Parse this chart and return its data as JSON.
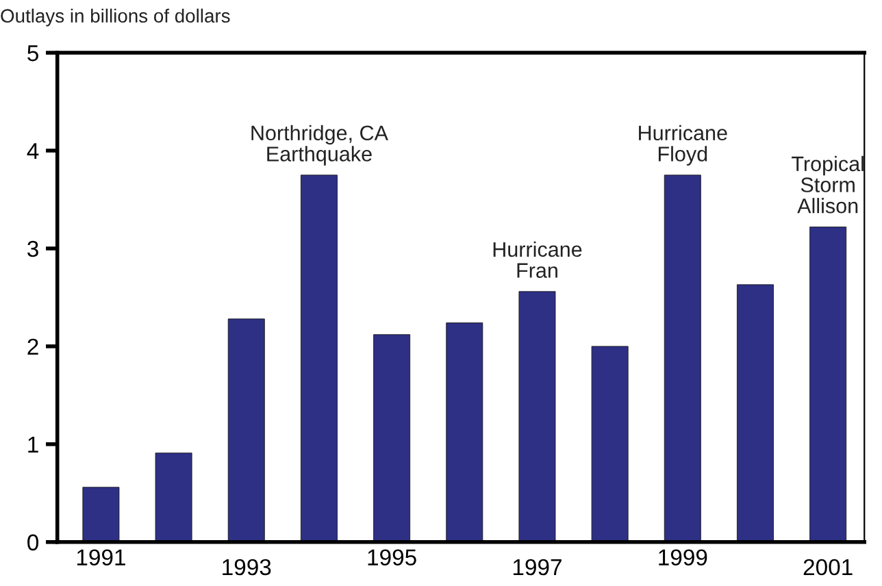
{
  "chart_data": {
    "type": "bar",
    "ylabel": "Outlays in billions of dollars",
    "categories": [
      "1991",
      null,
      "1993",
      null,
      "1995",
      null,
      "1997",
      null,
      "1999",
      null,
      "2001"
    ],
    "values": [
      0.56,
      0.91,
      2.28,
      3.75,
      2.12,
      2.24,
      2.56,
      2.0,
      3.75,
      2.63,
      3.22
    ],
    "color": "#2e3085",
    "ylim": [
      0,
      5
    ],
    "yticks": [
      0,
      1,
      2,
      3,
      4,
      5
    ],
    "grid": false,
    "annotations": [
      {
        "text": "Northridge, CA\nEarthquake",
        "y": 3.75
      },
      {
        "text": "Hurricane\nFran",
        "x": "1997",
        "y": 2.56
      },
      {
        "text": "Hurricane\nFloyd",
        "x": "1999",
        "y": 3.75
      },
      {
        "text": "Tropical\nStorm\nAllison",
        "x": "2001",
        "y": 3.22
      }
    ]
  }
}
